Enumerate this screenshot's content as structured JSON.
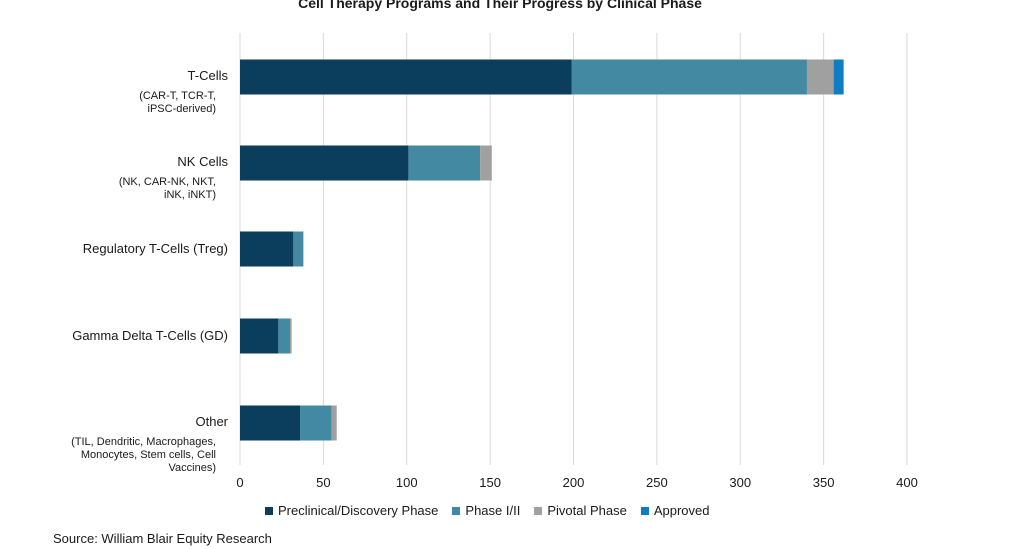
{
  "chart_data": {
    "type": "bar",
    "orientation": "horizontal",
    "stacked": true,
    "title": "Cell Therapy Programs and Their Progress by Clinical Phase",
    "categories": [
      {
        "label": "T-Cells",
        "sublabel": "(CAR-T, TCR-T,\niPSC-derived)"
      },
      {
        "label": "NK Cells",
        "sublabel": "(NK, CAR-NK, NKT,\niNK, iNKT)"
      },
      {
        "label": "Regulatory T-Cells (Treg)",
        "sublabel": ""
      },
      {
        "label": "Gamma Delta T-Cells (GD)",
        "sublabel": ""
      },
      {
        "label": "Other",
        "sublabel": "(TIL, Dendritic, Macrophages,\nMonocytes, Stem cells, Cell\nVaccines)"
      }
    ],
    "series": [
      {
        "name": "Preclinical/Discovery Phase",
        "color": "#0b3d5c",
        "values": [
          199,
          101,
          32,
          23,
          36
        ]
      },
      {
        "name": "Phase I/II",
        "color": "#4389a2",
        "values": [
          141,
          43,
          6,
          7,
          19
        ]
      },
      {
        "name": "Pivotal Phase",
        "color": "#a0a0a0",
        "values": [
          16,
          7,
          0,
          1,
          3
        ]
      },
      {
        "name": "Approved",
        "color": "#0e7dc2",
        "values": [
          6,
          0,
          0,
          0,
          0
        ]
      }
    ],
    "xlim": [
      0,
      400
    ],
    "xticks": [
      "0",
      "50",
      "100",
      "150",
      "200",
      "250",
      "300",
      "350",
      "400"
    ],
    "grid": true,
    "legend_position": "bottom"
  },
  "source": "Source: William Blair Equity Research"
}
